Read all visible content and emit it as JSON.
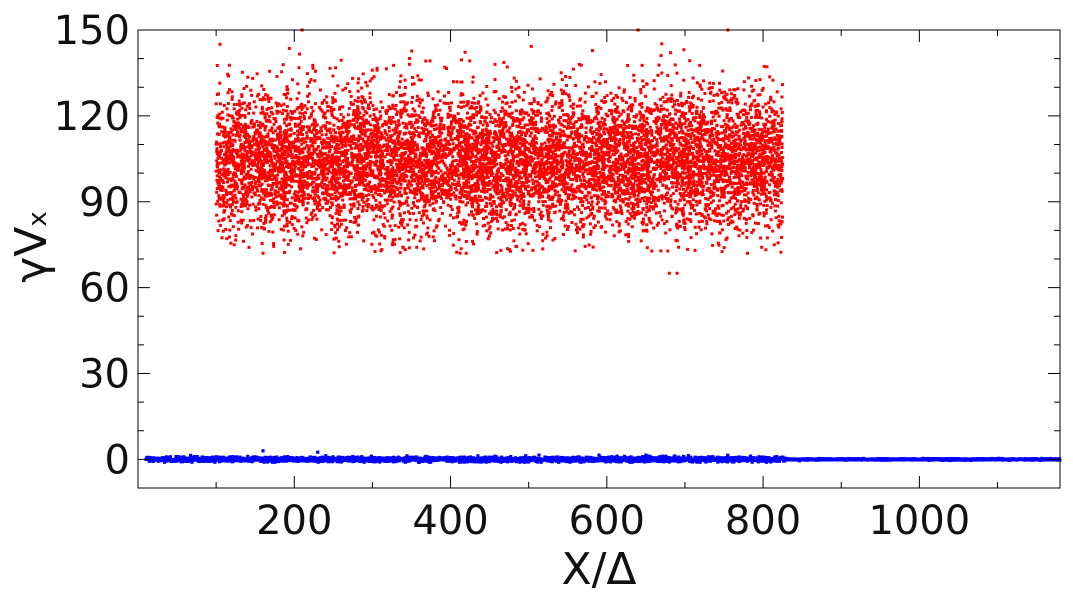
{
  "chart_data": {
    "type": "scatter",
    "title": "",
    "xlabel": "X/Δ",
    "ylabel": {
      "main": "γV",
      "subscript": "x"
    },
    "xlim": [
      0,
      1180
    ],
    "ylim": [
      -10,
      150
    ],
    "x_ticks": [
      {
        "value": 200,
        "label": "200"
      },
      {
        "value": 400,
        "label": "400"
      },
      {
        "value": 600,
        "label": "600"
      },
      {
        "value": 800,
        "label": "800"
      },
      {
        "value": 1000,
        "label": "1000"
      }
    ],
    "y_ticks": [
      {
        "value": 0,
        "label": "0"
      },
      {
        "value": 30,
        "label": "30"
      },
      {
        "value": 60,
        "label": "60"
      },
      {
        "value": 90,
        "label": "90"
      },
      {
        "value": 120,
        "label": "120"
      },
      {
        "value": 150,
        "label": "150"
      }
    ],
    "grid": false,
    "legend": "none",
    "series": [
      {
        "color": "#ff0000",
        "x_range": [
          100,
          825
        ],
        "y_center": 104,
        "y_spread": 12,
        "y_min": 65,
        "y_max": 150,
        "sample_points": [
          [
            105,
            145
          ],
          [
            210,
            150
          ],
          [
            640,
            150
          ],
          [
            755,
            150
          ],
          [
            680,
            65
          ],
          [
            690,
            65
          ],
          [
            160,
            72
          ],
          [
            420,
            72
          ],
          [
            780,
            72
          ]
        ]
      },
      {
        "color": "#0000ff",
        "x_range": [
          10,
          1180
        ],
        "y_center": 0,
        "y_spread": 0.4,
        "y_min": -1,
        "y_max": 3,
        "sample_points": [
          [
            160,
            3
          ],
          [
            230,
            2.5
          ],
          [
            590,
            1.5
          ],
          [
            650,
            1.5
          ]
        ]
      }
    ]
  }
}
